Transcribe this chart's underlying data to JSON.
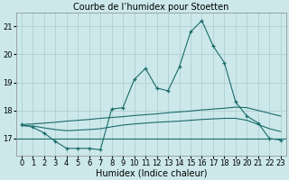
{
  "title": "Courbe de l’humidex pour Stoetten",
  "xlabel": "Humidex (Indice chaleur)",
  "background_color": "#cce8ea",
  "grid_color": "#aaccce",
  "line_color": "#1a6b6b",
  "x_values": [
    0,
    1,
    2,
    3,
    4,
    5,
    6,
    7,
    8,
    9,
    10,
    11,
    12,
    13,
    14,
    15,
    16,
    17,
    18,
    19,
    20,
    21,
    22,
    23
  ],
  "main_line": [
    17.5,
    17.4,
    17.2,
    16.9,
    16.65,
    16.65,
    16.65,
    16.6,
    18.05,
    18.1,
    19.1,
    19.5,
    18.8,
    18.7,
    19.55,
    20.8,
    21.2,
    20.3,
    19.7,
    18.3,
    17.8,
    17.55,
    17.0,
    16.95
  ],
  "upper_trend": [
    17.5,
    17.52,
    17.55,
    17.58,
    17.62,
    17.65,
    17.68,
    17.72,
    17.75,
    17.78,
    17.82,
    17.85,
    17.88,
    17.92,
    17.95,
    17.98,
    18.02,
    18.05,
    18.08,
    18.12,
    18.1,
    18.0,
    17.9,
    17.8
  ],
  "lower_trend": [
    17.45,
    17.45,
    17.38,
    17.32,
    17.28,
    17.3,
    17.32,
    17.35,
    17.42,
    17.48,
    17.52,
    17.55,
    17.58,
    17.6,
    17.62,
    17.65,
    17.68,
    17.7,
    17.72,
    17.72,
    17.65,
    17.5,
    17.35,
    17.25
  ],
  "flat_line_y": 17.0,
  "ylim": [
    16.4,
    21.5
  ],
  "xlim": [
    -0.5,
    23.5
  ],
  "yticks": [
    17,
    18,
    19,
    20,
    21
  ],
  "xticks": [
    0,
    1,
    2,
    3,
    4,
    5,
    6,
    7,
    8,
    9,
    10,
    11,
    12,
    13,
    14,
    15,
    16,
    17,
    18,
    19,
    20,
    21,
    22,
    23
  ],
  "title_fontsize": 7,
  "tick_fontsize": 6,
  "label_fontsize": 7
}
